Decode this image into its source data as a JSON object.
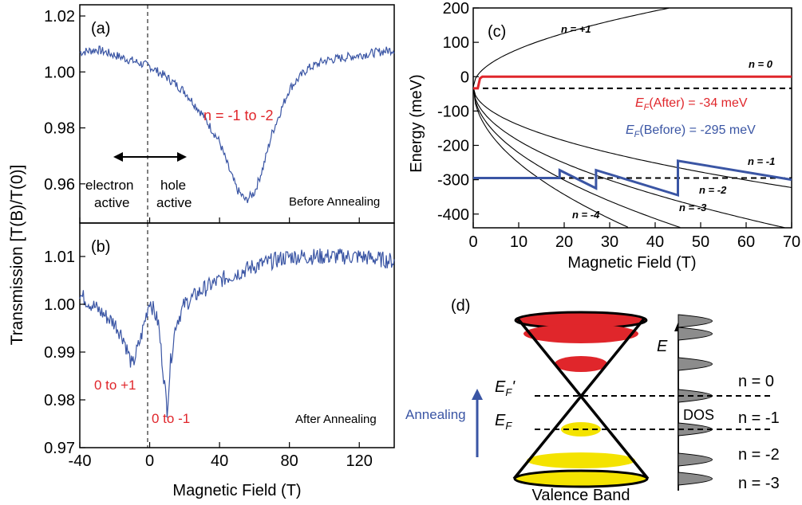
{
  "figure": {
    "ylabel_left": "Transmission [T(B)/T(0)]",
    "panel_a": {
      "label": "(a)",
      "annotation_n": "n = -1 to -2",
      "electron_label_1": "electron",
      "electron_label_2": "active",
      "hole_label_1": "hole",
      "hole_label_2": "active",
      "condition": "Before Annealing",
      "yticks": [
        "0.96",
        "0.98",
        "1.00",
        "1.02"
      ]
    },
    "panel_b": {
      "label": "(b)",
      "annotation_plus": "0 to +1",
      "annotation_minus": "0 to -1",
      "condition": "After Annealing",
      "yticks": [
        "0.97",
        "0.98",
        "0.99",
        "1.00",
        "1.01"
      ],
      "xticks": [
        "-40",
        "0",
        "40",
        "80",
        "120"
      ],
      "xlabel": "Magnetic Field (T)"
    },
    "panel_c": {
      "label": "(c)",
      "ylabel": "Energy (meV)",
      "xlabel": "Magnetic Field (T)",
      "xticks": [
        "0",
        "10",
        "20",
        "30",
        "40",
        "50",
        "60",
        "70"
      ],
      "yticks": [
        "200",
        "100",
        "0",
        "-100",
        "-200",
        "-300",
        "-400"
      ],
      "level_labels": {
        "n_p1": "n = +1",
        "n_0": "n = 0",
        "n_m1": "n = -1",
        "n_m2": "n = -2",
        "n_m3": "n = -3",
        "n_m4": "n = -4"
      },
      "ef_after": "(After) = -34 meV",
      "ef_before": "(Before) = -295 meV"
    },
    "panel_d": {
      "label": "(d)",
      "axis_E": "E",
      "ef_prime": "E",
      "ef": "E",
      "annealing": "Annealing",
      "dos": "DOS",
      "valence_band": "Valence Band",
      "n_labels": [
        "n = 0",
        "n = -1",
        "n = -2",
        "n = -3"
      ]
    }
  },
  "colors": {
    "blue": "#3a55a4",
    "red": "#e0262b",
    "yellow": "#f4e300",
    "gray": "#8c8c8c"
  },
  "chart_data": [
    {
      "type": "line",
      "panel": "a",
      "xlim": [
        -40,
        140
      ],
      "ylim": [
        0.946,
        1.024
      ],
      "series": [
        {
          "x": [
            -40,
            -30,
            -20,
            -10,
            0,
            10,
            20,
            30,
            40,
            45,
            50,
            55,
            60,
            65,
            70,
            80,
            90,
            100,
            110,
            120,
            130,
            140
          ],
          "y": [
            1.007,
            1.008,
            1.006,
            1.004,
            1.002,
            0.998,
            0.993,
            0.985,
            0.975,
            0.966,
            0.958,
            0.954,
            0.957,
            0.966,
            0.978,
            0.994,
            1.001,
            1.004,
            1.005,
            1.006,
            1.007,
            1.008
          ]
        }
      ]
    },
    {
      "type": "line",
      "panel": "b",
      "xlim": [
        -40,
        140
      ],
      "ylim": [
        0.97,
        1.017
      ],
      "series": [
        {
          "x": [
            -40,
            -30,
            -20,
            -15,
            -10,
            -5,
            0,
            5,
            8,
            10,
            12,
            15,
            20,
            30,
            40,
            60,
            80,
            100,
            120,
            140
          ],
          "y": [
            1.002,
            0.999,
            0.996,
            0.993,
            0.987,
            0.993,
            1.001,
            0.996,
            0.985,
            0.978,
            0.988,
            0.996,
            1.0,
            1.003,
            1.005,
            1.008,
            1.01,
            1.01,
            1.01,
            1.009
          ]
        }
      ]
    },
    {
      "type": "line",
      "panel": "c",
      "xlim": [
        0,
        70
      ],
      "ylim": [
        -440,
        200
      ],
      "landau_velocity_coeff": 35,
      "ef_after_meV": -34,
      "ef_before_meV": -295,
      "levels": [
        1,
        0,
        -1,
        -2,
        -3,
        -4
      ],
      "red_trace": {
        "x": [
          0,
          1,
          1.5,
          2,
          70
        ],
        "y": [
          -34,
          -34,
          -5,
          0,
          0
        ]
      },
      "blue_trace": {
        "x": [
          0,
          19,
          19,
          27,
          27,
          45,
          45,
          70
        ],
        "y": [
          -295,
          -295,
          -272,
          -325,
          -272,
          -345,
          -245,
          -300
        ]
      }
    }
  ]
}
